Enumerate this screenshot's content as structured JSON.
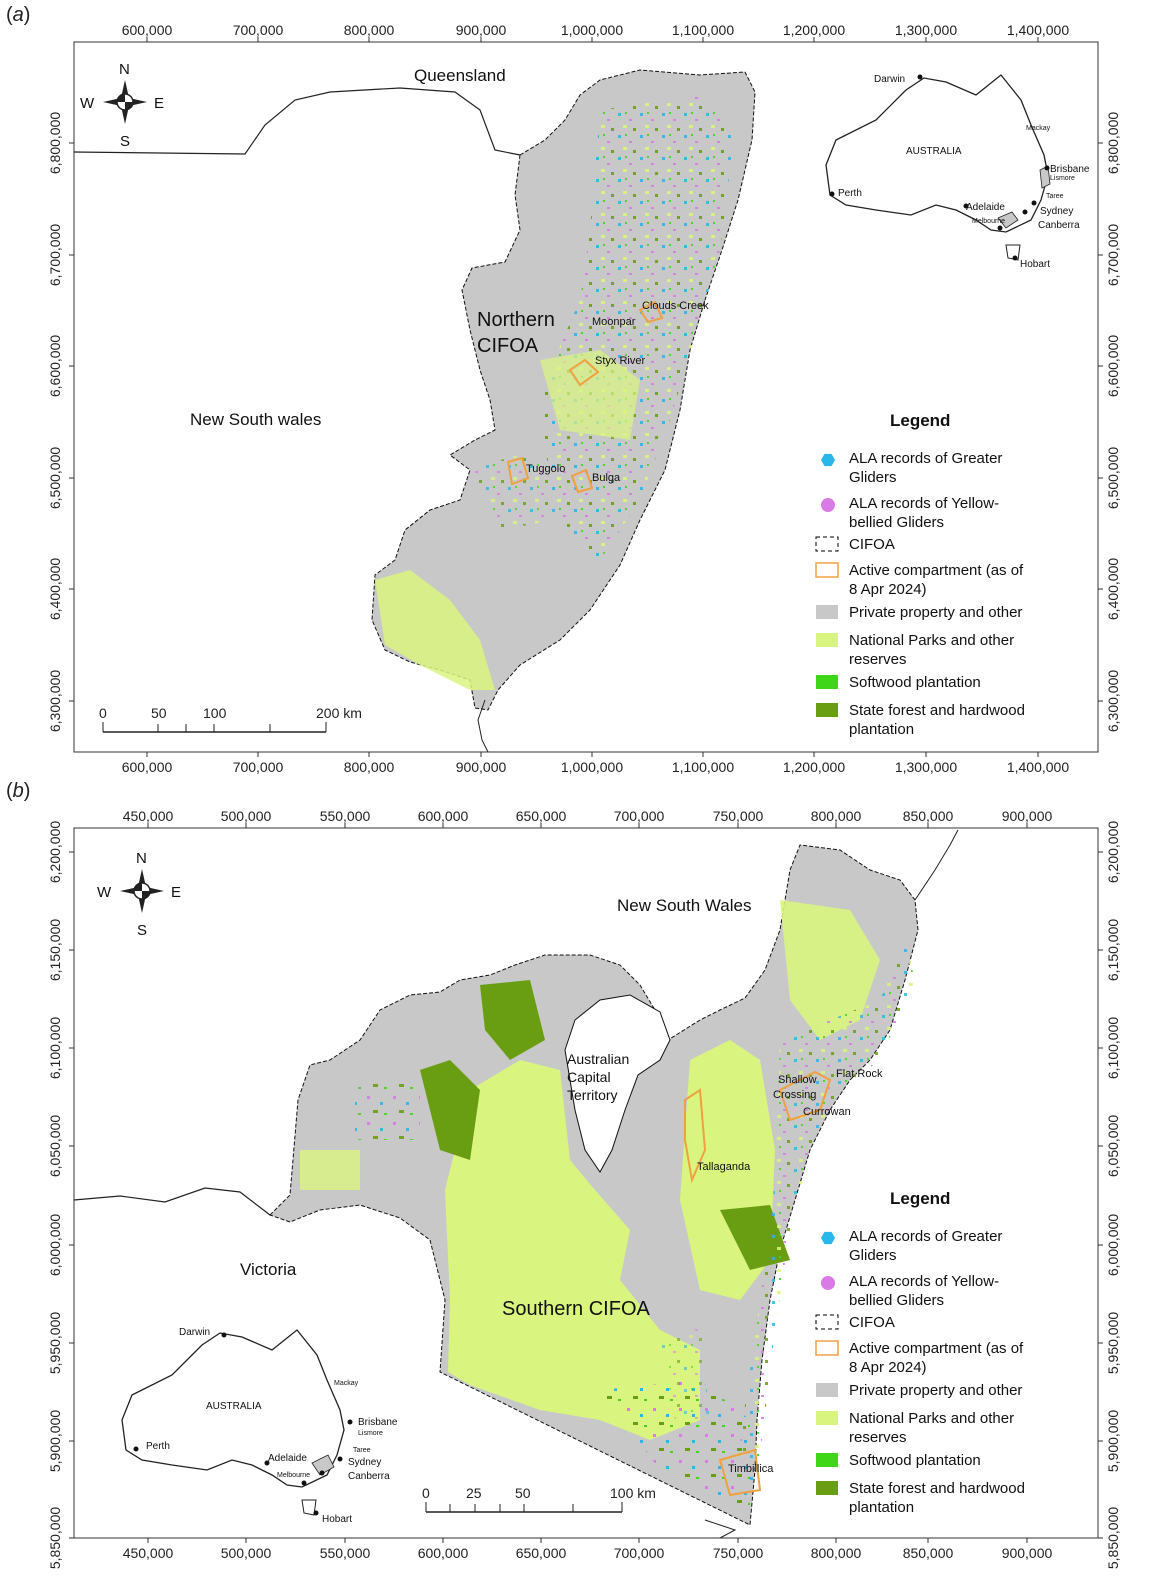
{
  "panels": [
    {
      "label": "a",
      "top_axis": [
        "600,000",
        "700,000",
        "800,000",
        "900,000",
        "1,000,000",
        "1,100,000",
        "1,200,000",
        "1,300,000",
        "1,400,000"
      ],
      "bottom_axis": [
        "600,000",
        "700,000",
        "800,000",
        "900,000",
        "1,000,000",
        "1,100,000",
        "1,200,000",
        "1,300,000",
        "1,400,000"
      ],
      "left_axis": [
        "6,800,000",
        "6,700,000",
        "6,600,000",
        "6,500,000",
        "6,400,000",
        "6,300,000"
      ],
      "right_axis": [
        "6,800,000",
        "6,700,000",
        "6,600,000",
        "6,500,000",
        "6,400,000",
        "6,300,000"
      ],
      "states": [
        "Queensland",
        "New South wales"
      ],
      "region_name": [
        "Northern",
        "CIFOA"
      ],
      "places": [
        "Clouds Creek",
        "Moonpar",
        "Styx River",
        "Tuggolo",
        "Bulga"
      ],
      "scale": [
        "0",
        "50",
        "100",
        "200 km"
      ],
      "inset": {
        "title": "AUSTRALIA",
        "cities": [
          "Darwin",
          "Mackay",
          "Brisbane",
          "Lismore",
          "Taree",
          "Perth",
          "Adelaide",
          "Melbourne",
          "Sydney",
          "Canberra",
          "Hobart"
        ]
      }
    },
    {
      "label": "b",
      "top_axis": [
        "450,000",
        "500,000",
        "550,000",
        "600,000",
        "650,000",
        "700,000",
        "750,000",
        "800,000",
        "850,000",
        "900,000"
      ],
      "bottom_axis": [
        "450,000",
        "500,000",
        "550,000",
        "600,000",
        "650,000",
        "700,000",
        "750,000",
        "800,000",
        "850,000",
        "900,000"
      ],
      "left_axis": [
        "6,200,000",
        "6,150,000",
        "6,100,000",
        "6,050,000",
        "6,000,000",
        "5,950,000",
        "5,900,000",
        "5,850,000"
      ],
      "right_axis": [
        "6,200,000",
        "6,150,000",
        "6,100,000",
        "6,050,000",
        "6,000,000",
        "5,950,000",
        "5,900,000",
        "5,850,000"
      ],
      "states": [
        "New South Wales",
        "Victoria"
      ],
      "act": [
        "Australian",
        "Capital",
        "Territory"
      ],
      "region_name": "Southern CIFOA",
      "places": [
        "Flat Rock",
        "Shallow",
        "Crossing",
        "Currowan",
        "Tallaganda",
        "Timbillica"
      ],
      "scale": [
        "0",
        "25",
        "50",
        "100 km"
      ],
      "inset": {
        "title": "AUSTRALIA",
        "cities": [
          "Darwin",
          "Mackay",
          "Brisbane",
          "Lismore",
          "Taree",
          "Perth",
          "Adelaide",
          "Melbourne",
          "Sydney",
          "Canberra",
          "Hobart"
        ]
      }
    }
  ],
  "compass": {
    "n": "N",
    "s": "S",
    "e": "E",
    "w": "W"
  },
  "legend": {
    "title": "Legend",
    "items": [
      {
        "lines": [
          "ALA records of Greater",
          "Gliders"
        ],
        "color": "#29b6ea",
        "symbol": "hexagon"
      },
      {
        "lines": [
          "ALA records of Yellow-",
          "bellied Gliders"
        ],
        "color": "#d97ae6",
        "symbol": "circle"
      },
      {
        "lines": [
          "CIFOA"
        ],
        "color": "#000000",
        "symbol": "dashed-box"
      },
      {
        "lines": [
          "Active compartment (as of",
          "8 Apr 2024)"
        ],
        "color": "#f0a040",
        "symbol": "outline-box"
      },
      {
        "lines": [
          "Private property and other"
        ],
        "color": "#c8c8c8",
        "symbol": "fill-box"
      },
      {
        "lines": [
          "National Parks and other",
          "reserves"
        ],
        "color": "#d9f57f",
        "symbol": "fill-box"
      },
      {
        "lines": [
          "Softwood plantation"
        ],
        "color": "#3fd61a",
        "symbol": "fill-box"
      },
      {
        "lines": [
          "State forest and hardwood",
          "plantation"
        ],
        "color": "#6a9e12",
        "symbol": "fill-box"
      }
    ]
  },
  "colors": {
    "private": "#c8c8c8",
    "reserves": "#d9f57f",
    "softwood": "#3fd61a",
    "hardwood": "#6a9e12",
    "greater_glider": "#29b6ea",
    "yellow_bellied": "#d97ae6",
    "active": "#f0a040"
  }
}
